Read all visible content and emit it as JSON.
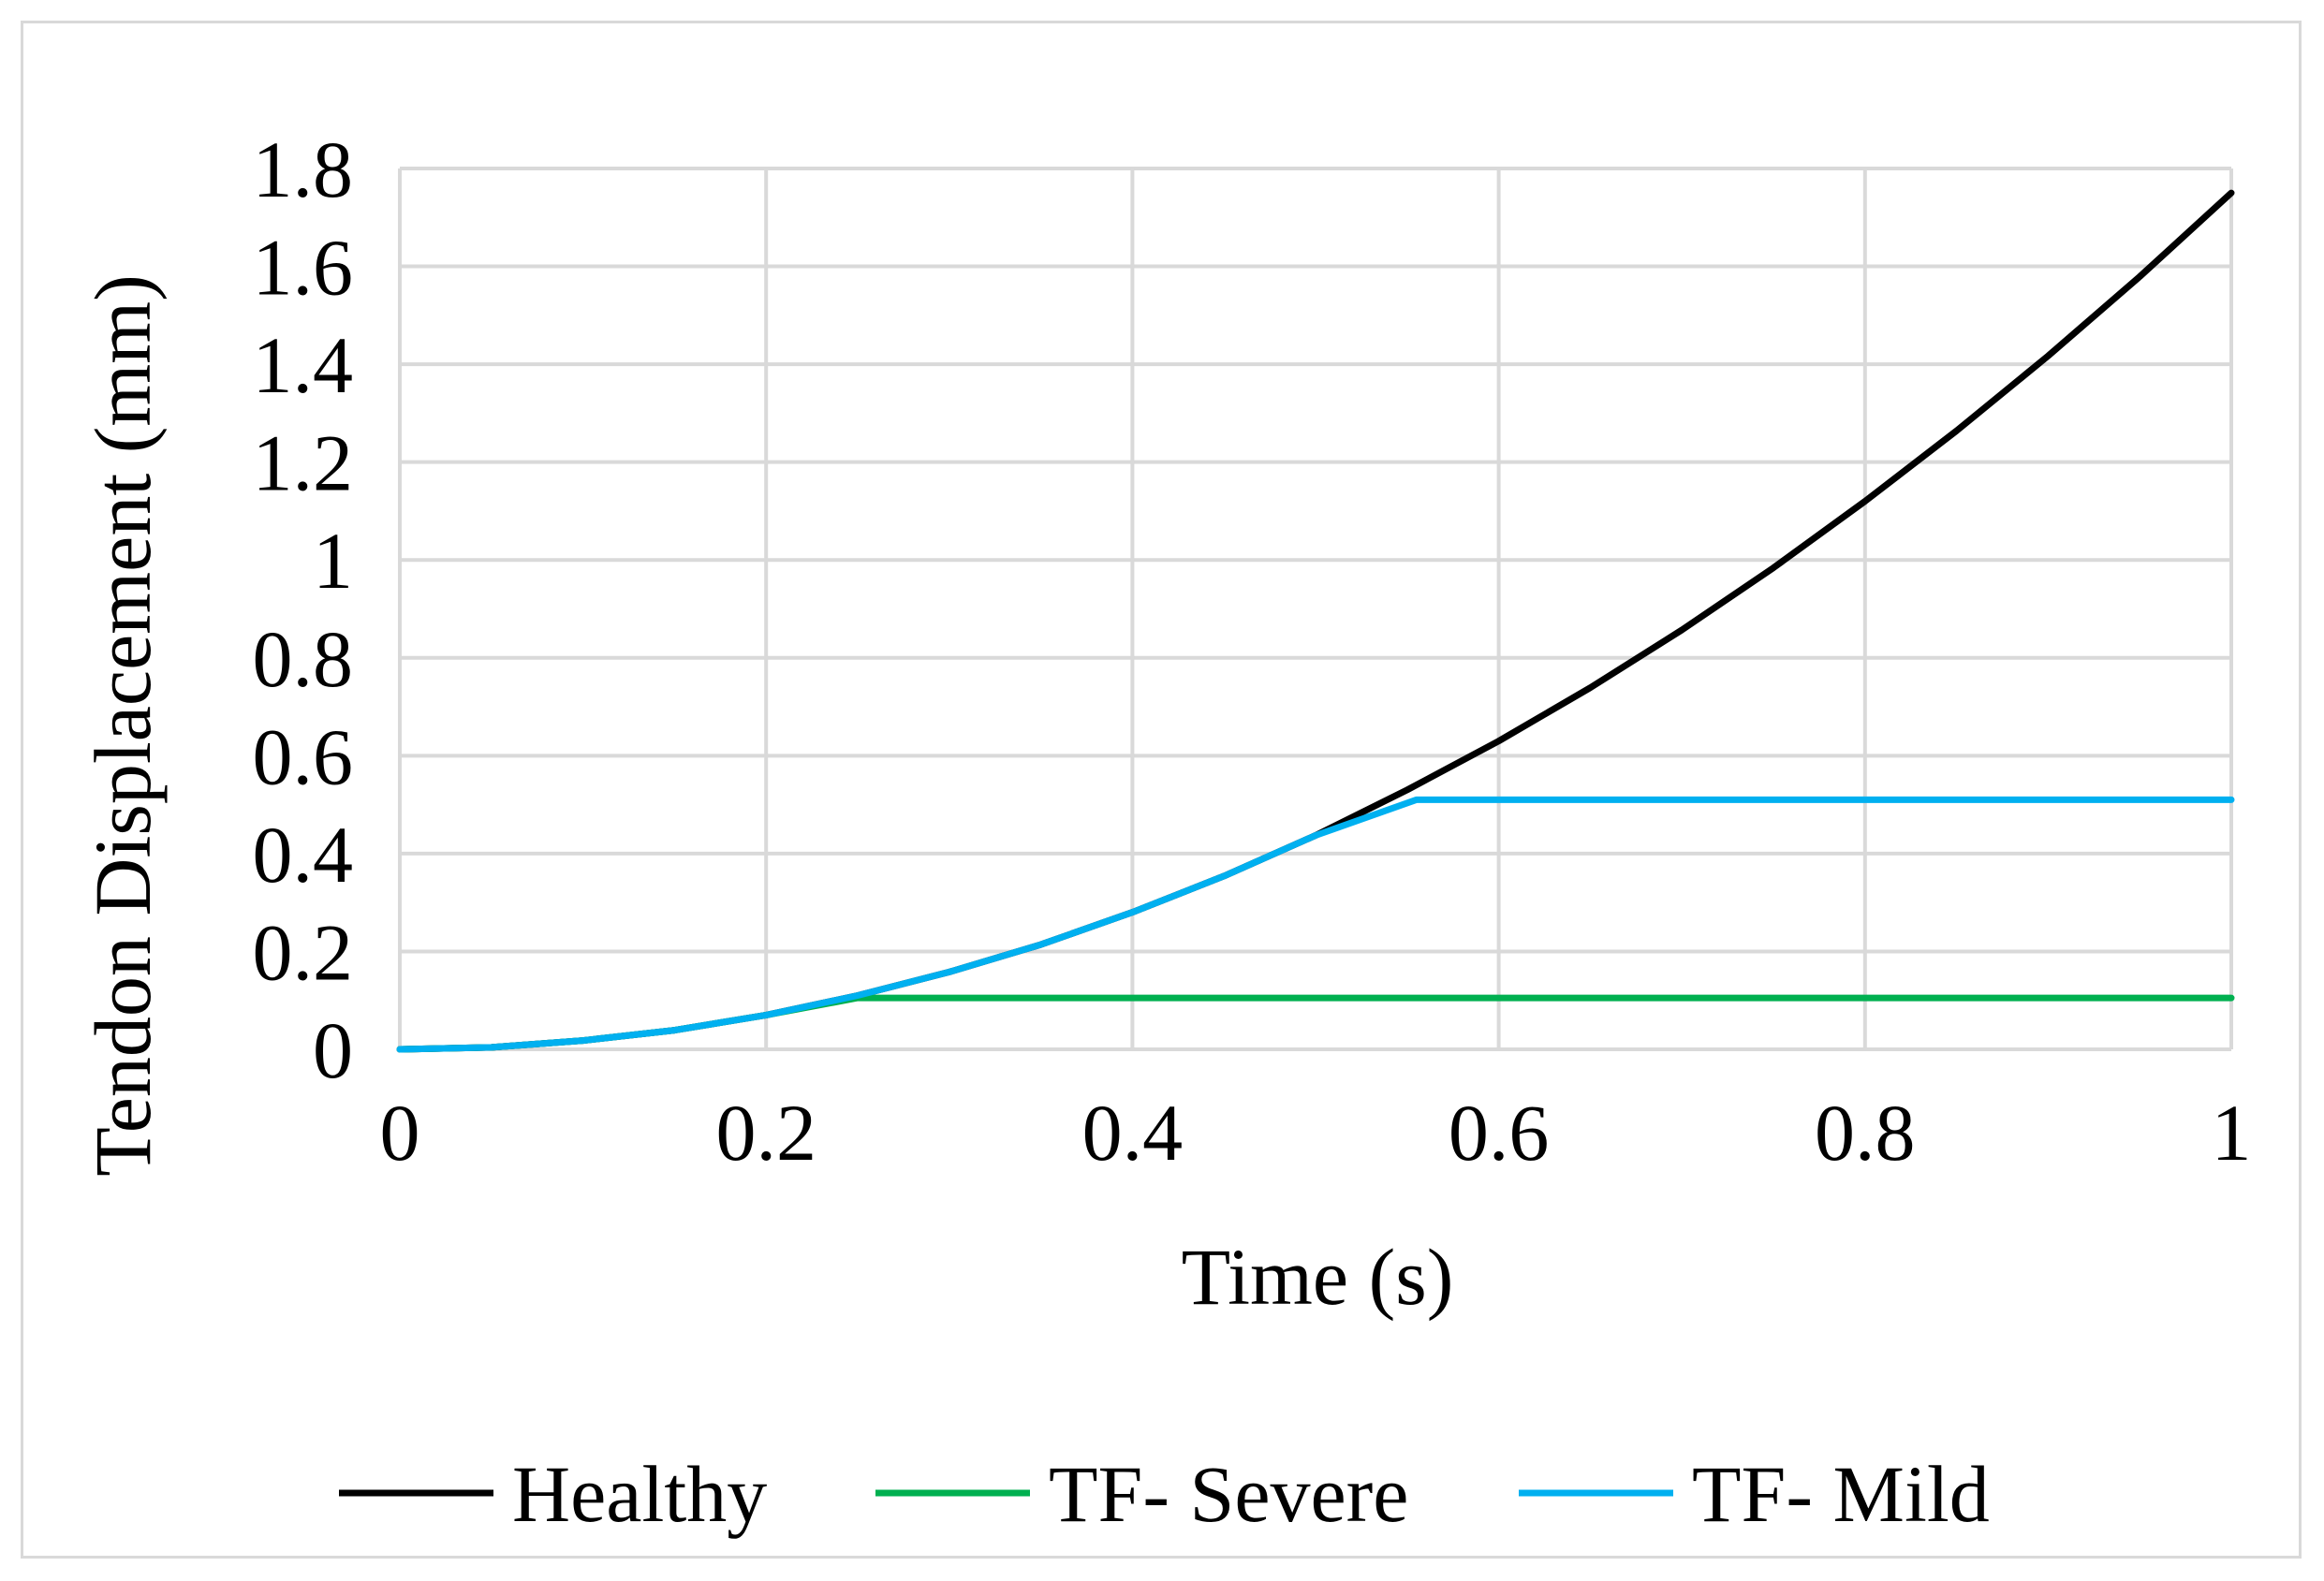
{
  "chart_data": {
    "type": "line",
    "title": "",
    "xlabel": "Time (s)",
    "ylabel": "Tendon Displacement (mm)",
    "xlim": [
      0,
      1
    ],
    "ylim": [
      0,
      1.8
    ],
    "x_ticks": [
      "0",
      "0.2",
      "0.4",
      "0.6",
      "0.8",
      "1"
    ],
    "y_ticks": [
      "0",
      "0.2",
      "0.4",
      "0.6",
      "0.8",
      "1",
      "1.2",
      "1.4",
      "1.6",
      "1.8"
    ],
    "grid": true,
    "legend_position": "bottom",
    "series": [
      {
        "name": "Healthy",
        "color": "#000000",
        "x": [
          0,
          0.05,
          0.1,
          0.15,
          0.2,
          0.25,
          0.3,
          0.35,
          0.4,
          0.45,
          0.5,
          0.55,
          0.6,
          0.65,
          0.7,
          0.75,
          0.8,
          0.85,
          0.9,
          0.95,
          1.0
        ],
        "y": [
          0,
          0.004,
          0.018,
          0.039,
          0.07,
          0.11,
          0.158,
          0.214,
          0.28,
          0.354,
          0.437,
          0.53,
          0.63,
          0.739,
          0.857,
          0.984,
          1.12,
          1.264,
          1.417,
          1.579,
          1.75
        ]
      },
      {
        "name": "TF- Severe",
        "color": "#00b050",
        "x": [
          0,
          0.05,
          0.1,
          0.15,
          0.2,
          0.25,
          1.0
        ],
        "y": [
          0,
          0.004,
          0.018,
          0.039,
          0.07,
          0.105,
          0.105
        ]
      },
      {
        "name": "TF- Mild",
        "color": "#00b0f0",
        "x": [
          0,
          0.05,
          0.1,
          0.15,
          0.2,
          0.25,
          0.3,
          0.35,
          0.4,
          0.45,
          0.5,
          0.555,
          1.0
        ],
        "y": [
          0,
          0.004,
          0.018,
          0.039,
          0.07,
          0.11,
          0.158,
          0.214,
          0.28,
          0.354,
          0.437,
          0.51,
          0.51
        ]
      }
    ]
  }
}
